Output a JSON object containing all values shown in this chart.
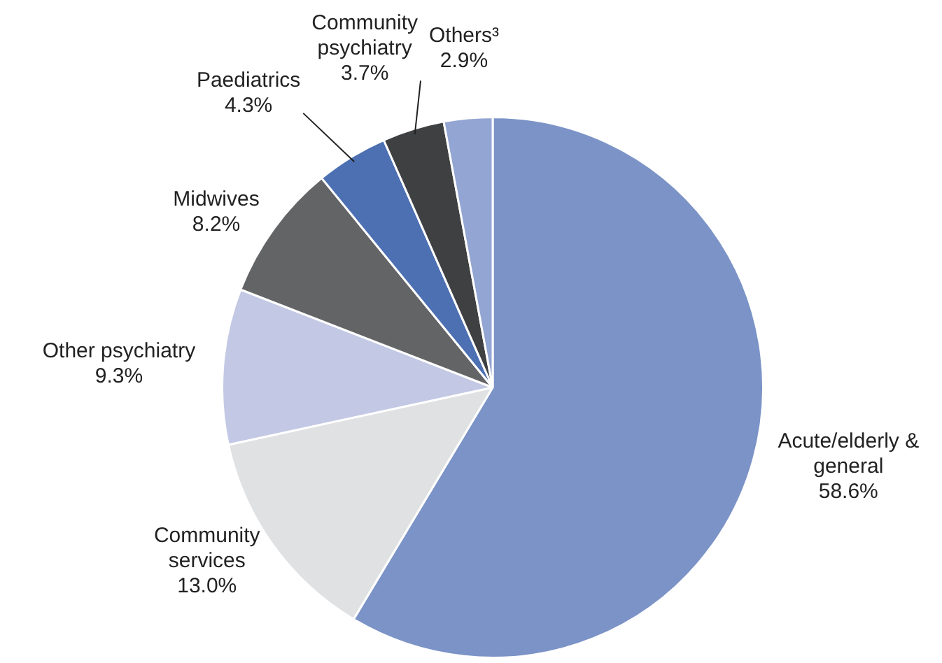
{
  "chart_data": {
    "type": "pie",
    "categories": [
      "Acute/elderly & general",
      "Community services",
      "Other psychiatry",
      "Midwives",
      "Paediatrics",
      "Community psychiatry",
      "Others³"
    ],
    "values": [
      58.6,
      13.0,
      9.3,
      8.2,
      4.3,
      3.7,
      2.9
    ],
    "colors": [
      "#7b93c6",
      "#e0e1e3",
      "#c3c9e4",
      "#636466",
      "#4d70b3",
      "#3f4042",
      "#93a5d2"
    ],
    "value_labels": [
      "58.6%",
      "13.0%",
      "9.3%",
      "8.2%",
      "4.3%",
      "3.7%",
      "2.9%"
    ],
    "legend": false
  }
}
